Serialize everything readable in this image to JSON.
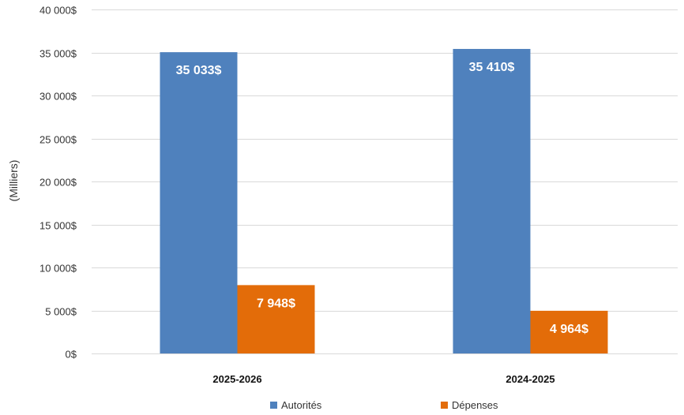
{
  "chart_data": {
    "type": "bar",
    "categories": [
      "2025-2026",
      "2024-2025"
    ],
    "series": [
      {
        "name": "Autorités",
        "values": [
          35033,
          35410
        ],
        "labels": [
          "35 033$",
          "35 410$"
        ],
        "color": "#4f81bd"
      },
      {
        "name": "Dépenses",
        "values": [
          7948,
          4964
        ],
        "labels": [
          "7 948$",
          "4 964$"
        ],
        "color": "#e36c09"
      }
    ],
    "yticks": [
      0,
      5000,
      10000,
      15000,
      20000,
      25000,
      30000,
      35000,
      40000
    ],
    "ytick_labels": [
      "0$",
      "5 000$",
      "10 000$",
      "15 000$",
      "20 000$",
      "25 000$",
      "30 000$",
      "35 000$",
      "40 000$"
    ],
    "ylim": [
      0,
      40000
    ],
    "ylabel": "(Milliers)",
    "xlabel": "",
    "title": "",
    "grid": true,
    "legend_position": "bottom"
  }
}
